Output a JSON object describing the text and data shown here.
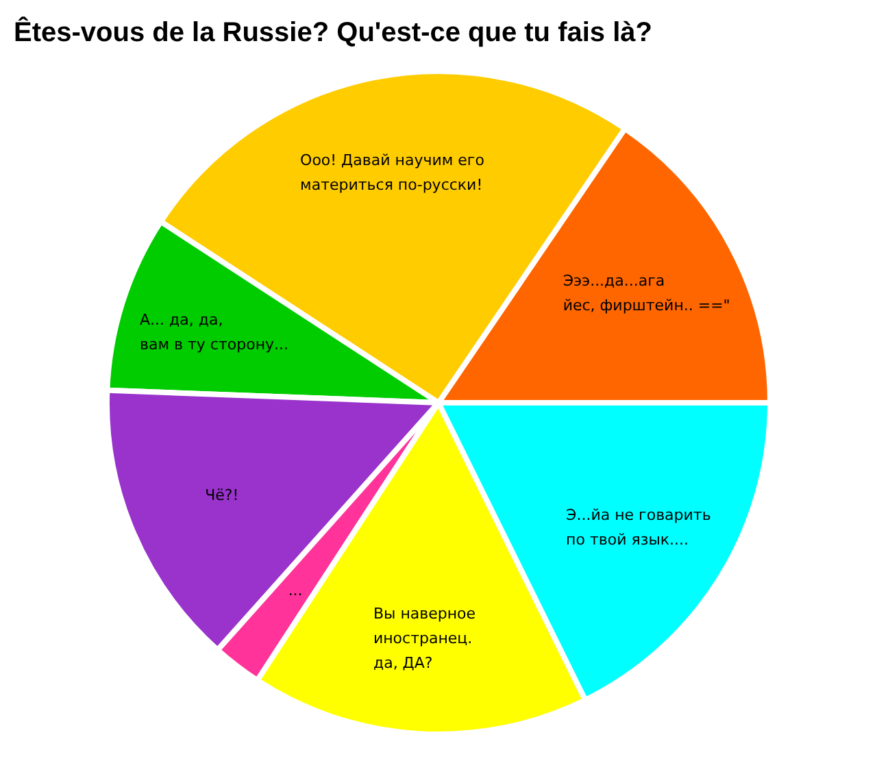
{
  "chart_data": {
    "type": "pie",
    "title": "Êtes-vous de la Russie? Qu'est-ce que tu fais là?",
    "categories": [
      "Эээ...да...ага\nйес, фирштейн.. ==\"",
      "Ооо! Давай научим его\nматериться по-русски!",
      "А... да, да,\nвам в ту сторону...",
      "Чё?!",
      "...",
      "Вы наверное\nиностранец.\nда, ДА?",
      "Э...йа не говарить\nпо твой язык...."
    ],
    "values": [
      15.5,
      25.3,
      8.6,
      14,
      2.4,
      16.5,
      17.7
    ],
    "colors": [
      "#ff6600",
      "#ffcc00",
      "#00cc00",
      "#9933cc",
      "#ff3399",
      "#ffff00",
      "#00ffff"
    ]
  }
}
